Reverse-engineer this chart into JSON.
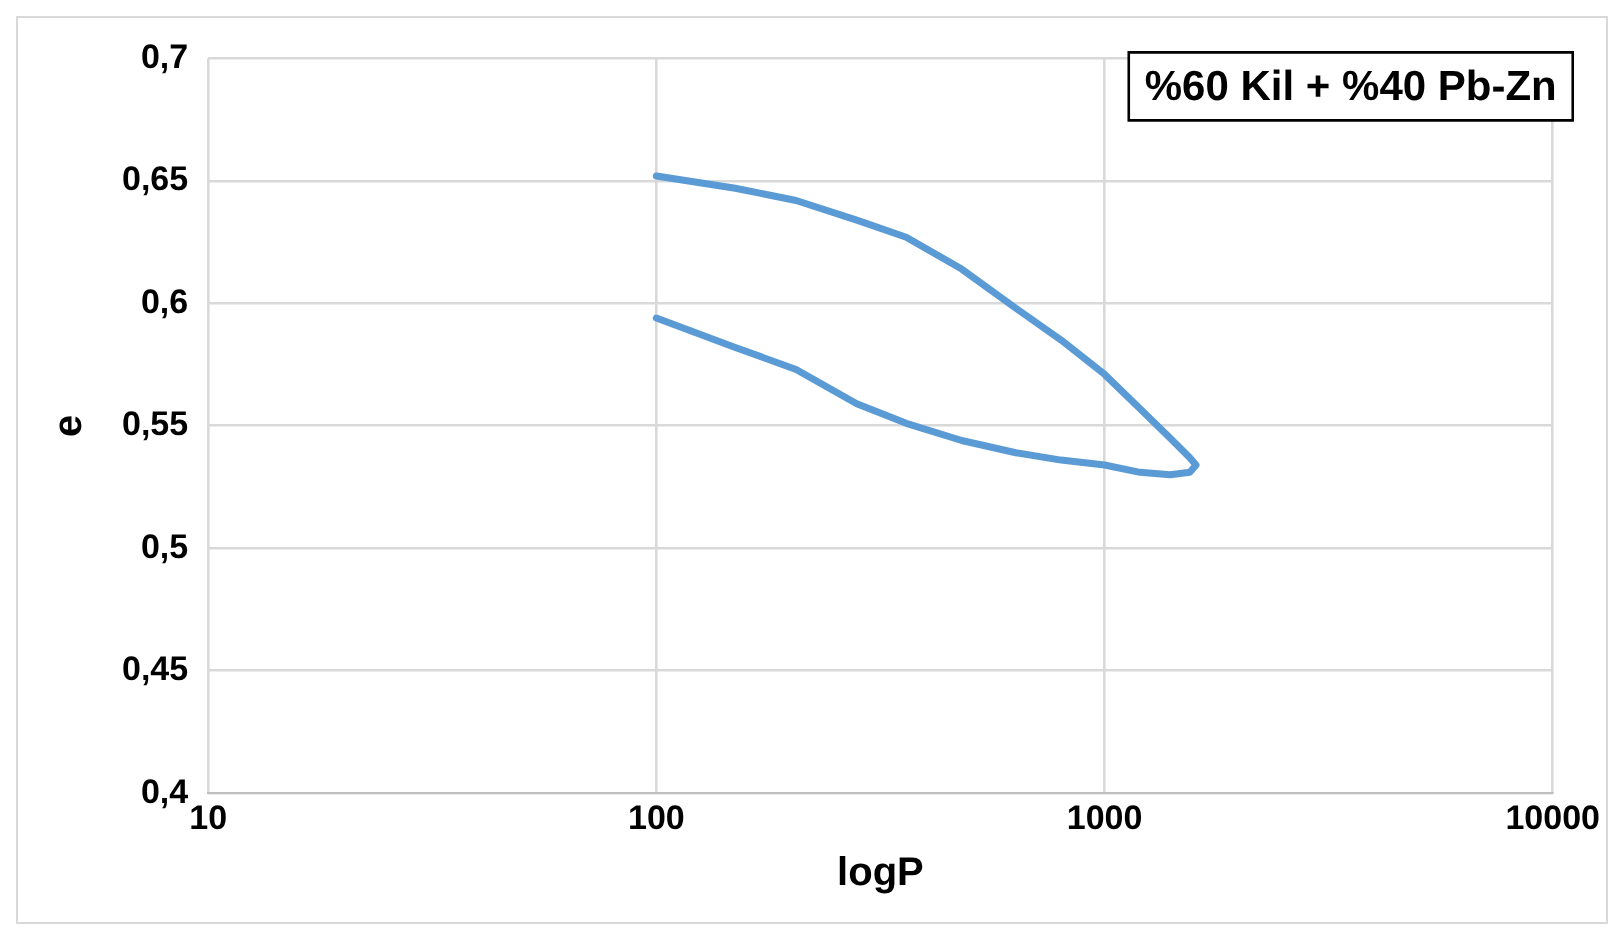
{
  "chart_data": {
    "type": "line",
    "xlabel": "logP",
    "ylabel": "e",
    "annotations": [
      "%60 Kil + %40 Pb-Zn"
    ],
    "log": "x",
    "grid": true,
    "legend": false,
    "marker": "none",
    "line_style": "solid",
    "xlim": [
      10,
      10000
    ],
    "xticks": [
      10,
      100,
      1000,
      10000
    ],
    "ylim": [
      0.4,
      0.7
    ],
    "yticks": [
      {
        "value": 0.4,
        "label": "0,4"
      },
      {
        "value": 0.45,
        "label": "0,45"
      },
      {
        "value": 0.5,
        "label": "0,5"
      },
      {
        "value": 0.55,
        "label": "0,55"
      },
      {
        "value": 0.6,
        "label": "0,6"
      },
      {
        "value": 0.65,
        "label": "0,65"
      },
      {
        "value": 0.7,
        "label": "0,7"
      }
    ],
    "series": [
      {
        "color": "#5b9bd5",
        "x": [
          100,
          150,
          205,
          280,
          361,
          480,
          634,
          800,
          1000,
          1200,
          1400,
          1550,
          1600,
          1550,
          1400,
          1200,
          1000,
          800,
          634,
          480,
          361,
          280,
          205,
          150,
          100
        ],
        "values": [
          0.652,
          0.647,
          0.642,
          0.634,
          0.627,
          0.614,
          0.598,
          0.585,
          0.571,
          0.557,
          0.545,
          0.537,
          0.534,
          0.531,
          0.53,
          0.531,
          0.534,
          0.536,
          0.539,
          0.544,
          0.551,
          0.559,
          0.573,
          0.582,
          0.594
        ]
      }
    ]
  }
}
